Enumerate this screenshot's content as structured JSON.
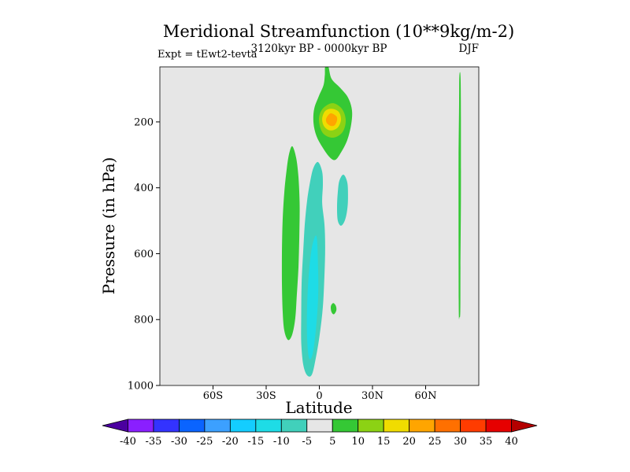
{
  "chart_data": {
    "type": "filled_contour",
    "title": "Meridional Streamfunction (10**9kg/m-2)",
    "subtitle_left": "Expt = tEwt2-tevta",
    "subtitle_center": "3120kyr BP - 0000kyr BP",
    "subtitle_right": "DJF",
    "xlabel": "Latitude",
    "ylabel": "Pressure (in hPa)",
    "x_axis": {
      "min": -90,
      "max": 90,
      "ticks": [
        {
          "value": -60,
          "label": "60S"
        },
        {
          "value": -30,
          "label": "30S"
        },
        {
          "value": 0,
          "label": "0"
        },
        {
          "value": 30,
          "label": "30N"
        },
        {
          "value": 60,
          "label": "60N"
        }
      ]
    },
    "y_axis": {
      "min": 33,
      "max": 1000,
      "ticks": [
        {
          "value": 200,
          "label": "200"
        },
        {
          "value": 400,
          "label": "400"
        },
        {
          "value": 600,
          "label": "600"
        },
        {
          "value": 800,
          "label": "800"
        },
        {
          "value": 1000,
          "label": "1000"
        }
      ]
    },
    "background_level": "-5 to 5",
    "background_color": "#e6e6e6",
    "colorbar": {
      "labels": [
        "-40",
        "-35",
        "-30",
        "-25",
        "-20",
        "-15",
        "-10",
        "-5",
        "5",
        "10",
        "15",
        "20",
        "25",
        "30",
        "35",
        "40"
      ],
      "segments": [
        {
          "range": "< -40",
          "color": "#4b00a0"
        },
        {
          "range": "-40 to -35",
          "color": "#8a1fff"
        },
        {
          "range": "-35 to -30",
          "color": "#3333ff"
        },
        {
          "range": "-30 to -25",
          "color": "#0a64ff"
        },
        {
          "range": "-25 to -20",
          "color": "#3ca0ff"
        },
        {
          "range": "-20 to -15",
          "color": "#14cdff"
        },
        {
          "range": "-15 to -10",
          "color": "#1edce6"
        },
        {
          "range": "-10 to -5",
          "color": "#41d0bb"
        },
        {
          "range": "-5 to 5",
          "color": "#e6e6e6"
        },
        {
          "range": "5 to 10",
          "color": "#35c835"
        },
        {
          "range": "10 to 15",
          "color": "#8cd214"
        },
        {
          "range": "15 to 20",
          "color": "#f0dc00"
        },
        {
          "range": "20 to 25",
          "color": "#ffa500"
        },
        {
          "range": "25 to 30",
          "color": "#ff7000"
        },
        {
          "range": "30 to 35",
          "color": "#ff3c00"
        },
        {
          "range": "35 to 40",
          "color": "#e60000"
        },
        {
          "range": "> 40",
          "color": "#b40000"
        }
      ]
    },
    "regions": [
      {
        "name": "equatorial-negative-column",
        "level": "-10 to -5",
        "color": "#41d0bb",
        "points": [
          [
            -0.7,
            322
          ],
          [
            1.6,
            351
          ],
          [
            2.0,
            391
          ],
          [
            1.6,
            446
          ],
          [
            2.9,
            511
          ],
          [
            3.3,
            582
          ],
          [
            2.9,
            666
          ],
          [
            2.0,
            761
          ],
          [
            0.2,
            845
          ],
          [
            -2.0,
            917
          ],
          [
            -4.2,
            967
          ],
          [
            -6.9,
            969
          ],
          [
            -9.1,
            936
          ],
          [
            -10.2,
            869
          ],
          [
            -10.2,
            785
          ],
          [
            -10.0,
            690
          ],
          [
            -9.1,
            594
          ],
          [
            -8.2,
            511
          ],
          [
            -6.9,
            439
          ],
          [
            -5.1,
            379
          ],
          [
            -3.3,
            339
          ]
        ]
      },
      {
        "name": "equatorial-negative-column-core",
        "level": "-15 to -10",
        "color": "#1edce6",
        "points": [
          [
            -1.6,
            547
          ],
          [
            -0.7,
            642
          ],
          [
            -0.7,
            737
          ],
          [
            -2.0,
            833
          ],
          [
            -3.8,
            905
          ],
          [
            -5.8,
            917
          ],
          [
            -6.9,
            857
          ],
          [
            -6.9,
            761
          ],
          [
            -6.0,
            666
          ],
          [
            -4.2,
            582
          ]
        ]
      },
      {
        "name": "southern-positive-column",
        "level": "5 to 10",
        "color": "#35c835",
        "points": [
          [
            -15.3,
            274
          ],
          [
            -13.1,
            308
          ],
          [
            -11.8,
            367
          ],
          [
            -11.1,
            451
          ],
          [
            -11.3,
            547
          ],
          [
            -11.8,
            642
          ],
          [
            -12.7,
            726
          ],
          [
            -13.6,
            797
          ],
          [
            -15.3,
            845
          ],
          [
            -17.6,
            862
          ],
          [
            -19.8,
            833
          ],
          [
            -20.7,
            773
          ],
          [
            -21.1,
            690
          ],
          [
            -21.1,
            594
          ],
          [
            -20.7,
            499
          ],
          [
            -19.8,
            415
          ],
          [
            -18.4,
            343
          ],
          [
            -17.1,
            298
          ]
        ]
      },
      {
        "name": "northern-subtropical-negative-cell",
        "level": "-10 to -5",
        "color": "#41d0bb",
        "points": [
          [
            13.6,
            360
          ],
          [
            15.8,
            384
          ],
          [
            16.2,
            427
          ],
          [
            15.8,
            465
          ],
          [
            14.4,
            499
          ],
          [
            12.2,
            515
          ],
          [
            10.4,
            499
          ],
          [
            10.0,
            458
          ],
          [
            10.4,
            415
          ],
          [
            11.3,
            379
          ]
        ]
      },
      {
        "name": "upper-tropical-positive-cell",
        "level": "5 to 10",
        "color": "#35c835",
        "points": [
          [
            3.3,
            33
          ],
          [
            5.1,
            33
          ],
          [
            6.9,
            69
          ],
          [
            11.8,
            97
          ],
          [
            16.2,
            126
          ],
          [
            18.4,
            164
          ],
          [
            18.0,
            207
          ],
          [
            15.8,
            255
          ],
          [
            12.2,
            293
          ],
          [
            9.1,
            315
          ],
          [
            6.0,
            308
          ],
          [
            2.0,
            279
          ],
          [
            -1.6,
            243
          ],
          [
            -3.3,
            203
          ],
          [
            -2.9,
            160
          ],
          [
            -0.2,
            121
          ],
          [
            2.4,
            88
          ],
          [
            3.1,
            57
          ]
        ]
      },
      {
        "name": "upper-tropical-positive-ring-1",
        "level": "10 to 15",
        "color": "#8cd214",
        "points": [
          [
            7.3,
            143
          ],
          [
            12.7,
            160
          ],
          [
            14.9,
            195
          ],
          [
            13.1,
            231
          ],
          [
            7.8,
            248
          ],
          [
            2.0,
            234
          ],
          [
            -0.2,
            195
          ],
          [
            1.6,
            162
          ]
        ]
      },
      {
        "name": "upper-tropical-positive-ring-2",
        "level": "15 to 20",
        "color": "#f0dc00",
        "points": [
          [
            6.9,
            160
          ],
          [
            10.9,
            169
          ],
          [
            12.2,
            193
          ],
          [
            10.4,
            217
          ],
          [
            6.4,
            226
          ],
          [
            2.9,
            215
          ],
          [
            1.6,
            191
          ],
          [
            3.3,
            167
          ]
        ]
      },
      {
        "name": "upper-tropical-positive-core",
        "level": "20 to 25",
        "color": "#ffa500",
        "points": [
          [
            6.9,
            174
          ],
          [
            9.6,
            183
          ],
          [
            10.0,
            195
          ],
          [
            8.7,
            210
          ],
          [
            6.4,
            212
          ],
          [
            4.2,
            203
          ],
          [
            3.8,
            191
          ],
          [
            5.1,
            179
          ]
        ]
      },
      {
        "name": "high-latitude-positive-sliver",
        "level": "5 to 10",
        "color": "#35c835",
        "points": [
          [
            79.0,
            62
          ],
          [
            79.7,
            62
          ],
          [
            79.9,
            190
          ],
          [
            79.9,
            430
          ],
          [
            79.65,
            640
          ],
          [
            79.55,
            775
          ],
          [
            79.1,
            792
          ],
          [
            78.7,
            775
          ],
          [
            78.6,
            545
          ],
          [
            78.6,
            305
          ],
          [
            78.9,
            140
          ]
        ]
      },
      {
        "name": "tropical-positive-speck",
        "level": "5 to 10",
        "color": "#35c835",
        "points": [
          [
            7.8,
            750
          ],
          [
            9.3,
            758
          ],
          [
            9.6,
            772
          ],
          [
            8.2,
            784
          ],
          [
            6.8,
            776
          ],
          [
            6.5,
            760
          ]
        ]
      }
    ]
  }
}
